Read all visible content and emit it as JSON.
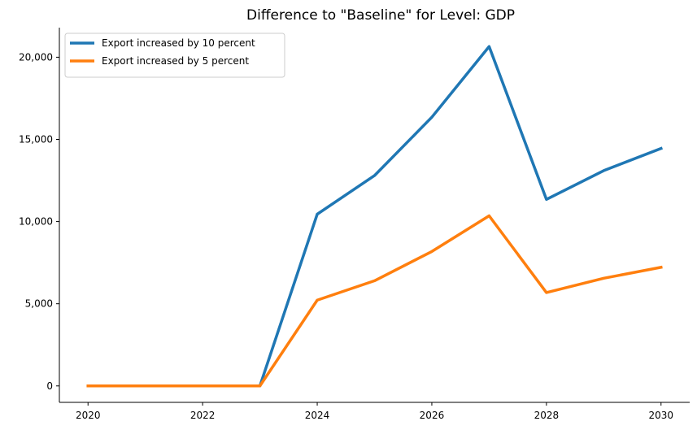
{
  "chart_data": {
    "type": "line",
    "title": "Difference to \"Baseline\" for Level: GDP",
    "xlabel": "",
    "ylabel": "",
    "x": [
      2020,
      2021,
      2022,
      2023,
      2024,
      2025,
      2026,
      2027,
      2028,
      2029,
      2030
    ],
    "xlim": [
      2019.5,
      2030.5
    ],
    "ylim": [
      -1000,
      21800
    ],
    "x_ticks": [
      "2020",
      "2022",
      "2024",
      "2026",
      "2028",
      "2030"
    ],
    "y_ticks": [
      "0",
      "5,000",
      "10,000",
      "15,000",
      "20,000"
    ],
    "grid": false,
    "legend_position": "top-left",
    "series": [
      {
        "name": "Export increased by 10 percent",
        "color": "#1f77b4",
        "values": [
          0,
          0,
          0,
          0,
          10450,
          12800,
          16350,
          20650,
          11350,
          13100,
          14450
        ]
      },
      {
        "name": "Export increased by 5 percent",
        "color": "#ff7f0e",
        "values": [
          0,
          0,
          0,
          0,
          5220,
          6400,
          8180,
          10350,
          5680,
          6550,
          7220
        ]
      }
    ]
  }
}
